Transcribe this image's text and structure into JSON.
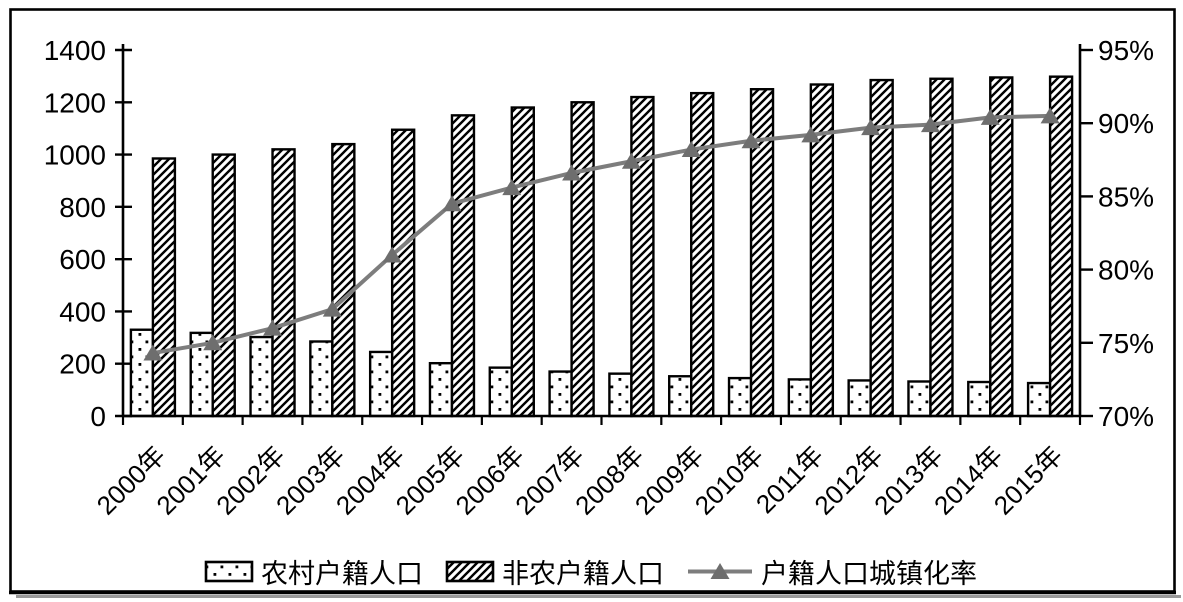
{
  "chart_data": {
    "type": "combo-bar-line",
    "title": "",
    "categories": [
      "2000年",
      "2001年",
      "2002年",
      "2003年",
      "2004年",
      "2005年",
      "2006年",
      "2007年",
      "2008年",
      "2009年",
      "2010年",
      "2011年",
      "2012年",
      "2013年",
      "2014年",
      "2015年"
    ],
    "series": [
      {
        "name": "农村户籍人口",
        "type": "bar",
        "axis": "left",
        "pattern": "dots",
        "values": [
          330,
          318,
          302,
          285,
          245,
          202,
          185,
          170,
          162,
          152,
          145,
          140,
          136,
          132,
          130,
          126
        ]
      },
      {
        "name": "非农户籍人口",
        "type": "bar",
        "axis": "left",
        "pattern": "diagonal-hatch",
        "values": [
          985,
          1000,
          1020,
          1040,
          1095,
          1150,
          1180,
          1200,
          1220,
          1235,
          1250,
          1268,
          1285,
          1290,
          1295,
          1298
        ]
      },
      {
        "name": "户籍人口城镇化率",
        "type": "line",
        "axis": "right",
        "marker": "triangle",
        "values": [
          74.3,
          75.0,
          76.0,
          77.3,
          81.0,
          84.5,
          85.6,
          86.6,
          87.4,
          88.2,
          88.8,
          89.2,
          89.7,
          89.9,
          90.4,
          90.5
        ]
      }
    ],
    "left_axis": {
      "min": 0,
      "max": 1400,
      "step": 200,
      "tick_labels": [
        "0",
        "200",
        "400",
        "600",
        "800",
        "1000",
        "1200",
        "1400"
      ]
    },
    "right_axis": {
      "min": 70,
      "max": 95,
      "step": 5,
      "unit": "%",
      "tick_labels": [
        "70%",
        "75%",
        "80%",
        "85%",
        "90%",
        "95%"
      ]
    },
    "legend": {
      "position": "bottom-center",
      "entries": [
        "农村户籍人口",
        "非农户籍人口",
        "户籍人口城镇化率"
      ]
    },
    "grid": false
  },
  "colors": {
    "background": "#ffffff",
    "bar_fill": "#ffffff",
    "bar_stroke": "#000000",
    "line": "#7d7d7d",
    "marker": "#6e6e6e",
    "text": "#000000",
    "frame": "#000000",
    "shadow": "#999999"
  }
}
